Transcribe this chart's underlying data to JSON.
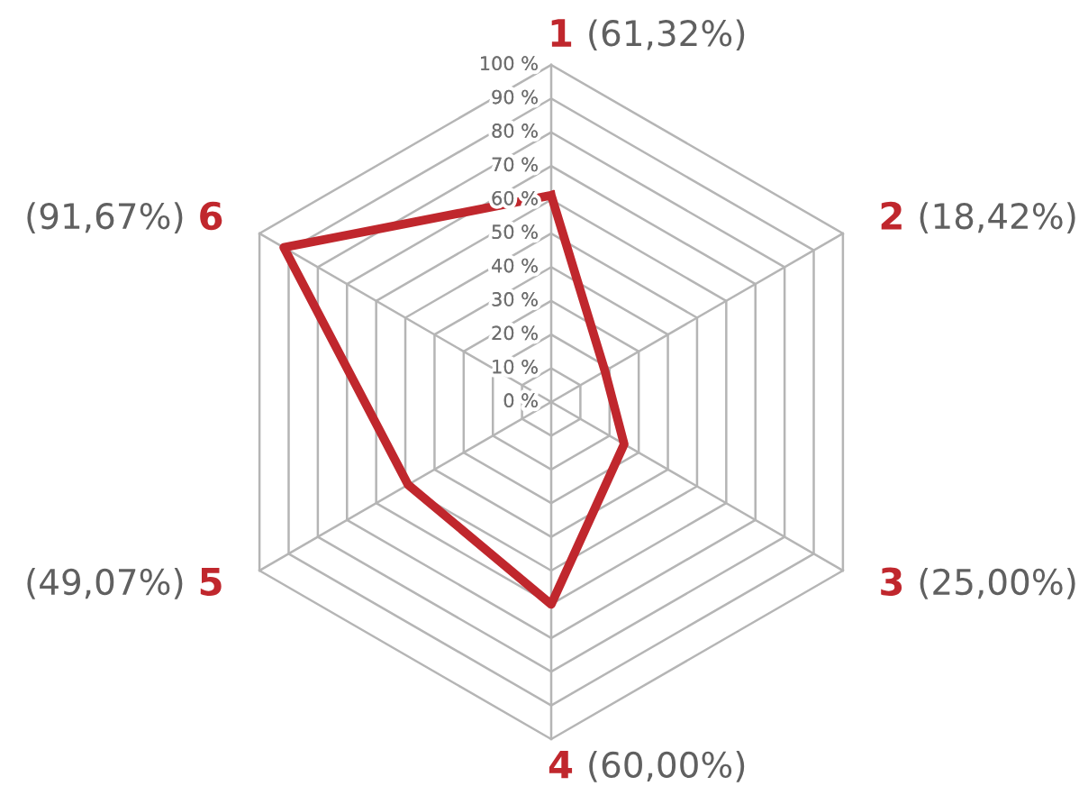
{
  "chart_data": {
    "type": "radar",
    "categories": [
      "1",
      "2",
      "3",
      "4",
      "5",
      "6"
    ],
    "series": [
      {
        "color": "#c0272d",
        "values": [
          61.32,
          18.42,
          25.0,
          60.0,
          49.07,
          91.67
        ]
      }
    ],
    "value_labels": [
      "(61,32%)",
      "(18,42%)",
      "(25,00%)",
      "(60,00%)",
      "(49,07%)",
      "(91,67%)"
    ],
    "ylim": [
      0,
      100
    ],
    "yticks": [
      {
        "value": 0,
        "label": "0 %"
      },
      {
        "value": 10,
        "label": "10 %"
      },
      {
        "value": 20,
        "label": "20 %"
      },
      {
        "value": 30,
        "label": "30 %"
      },
      {
        "value": 40,
        "label": "40 %"
      },
      {
        "value": 50,
        "label": "50 %"
      },
      {
        "value": 60,
        "label": "60 %"
      },
      {
        "value": 70,
        "label": "70 %"
      },
      {
        "value": 80,
        "label": "80 %"
      },
      {
        "value": 90,
        "label": "90 %"
      },
      {
        "value": 100,
        "label": "100 %"
      }
    ],
    "grid": true
  }
}
